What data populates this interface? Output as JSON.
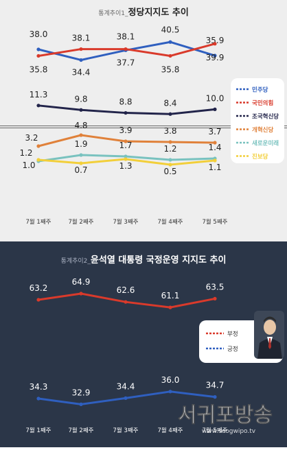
{
  "colors": {
    "top_bg": "#eeeeee",
    "bottom_bg": "#2b3648",
    "minjoo": "#2f5fbf",
    "gukhim": "#d93a2b",
    "joguk": "#22244a",
    "gaehyuk": "#e0813a",
    "saemirae": "#79c2bf",
    "jinbo": "#f2cf3a",
    "oppose": "#d93a2b",
    "approve": "#2f5fbf"
  },
  "chart1": {
    "title_prefix": "통계추이1_",
    "title": "정당지지도 추이"
  },
  "chart2": {
    "title_prefix": "통계추이2_",
    "title": "윤석열 대통령 국정운영 지지도 추이"
  },
  "watermark": {
    "name": "서귀포방송",
    "url": "www.seogwipo.tv"
  },
  "chart_data": [
    {
      "type": "line",
      "title": "정당지지도 추이",
      "x": [
        "7월 1째주",
        "7월 2째주",
        "7월 3째주",
        "7월 4째주",
        "7월 5째주"
      ],
      "series": [
        {
          "name": "민주당",
          "values": [
            38.0,
            34.4,
            37.7,
            40.5,
            35.9
          ]
        },
        {
          "name": "국민의힘",
          "values": [
            35.8,
            38.1,
            38.1,
            35.8,
            39.9
          ]
        },
        {
          "name": "조국혁신당",
          "values": [
            11.3,
            9.8,
            8.8,
            8.4,
            10.0
          ]
        },
        {
          "name": "개혁신당",
          "values": [
            3.2,
            4.8,
            3.9,
            3.8,
            3.7
          ]
        },
        {
          "name": "새로운미래",
          "values": [
            1.0,
            1.9,
            1.7,
            1.2,
            1.4
          ]
        },
        {
          "name": "진보당",
          "values": [
            1.2,
            0.7,
            1.3,
            0.5,
            1.1
          ]
        }
      ],
      "y_break": true,
      "legend_position": "right"
    },
    {
      "type": "line",
      "title": "윤석열 대통령 국정운영 지지도 추이",
      "x": [
        "7월 1째주",
        "7월 2째주",
        "7월 3째주",
        "7월 4째주",
        "7월 5째주"
      ],
      "series": [
        {
          "name": "부정",
          "values": [
            63.2,
            64.9,
            62.6,
            61.1,
            63.5
          ]
        },
        {
          "name": "긍정",
          "values": [
            34.3,
            32.9,
            34.4,
            36.0,
            34.7
          ]
        }
      ],
      "legend_position": "right"
    }
  ]
}
